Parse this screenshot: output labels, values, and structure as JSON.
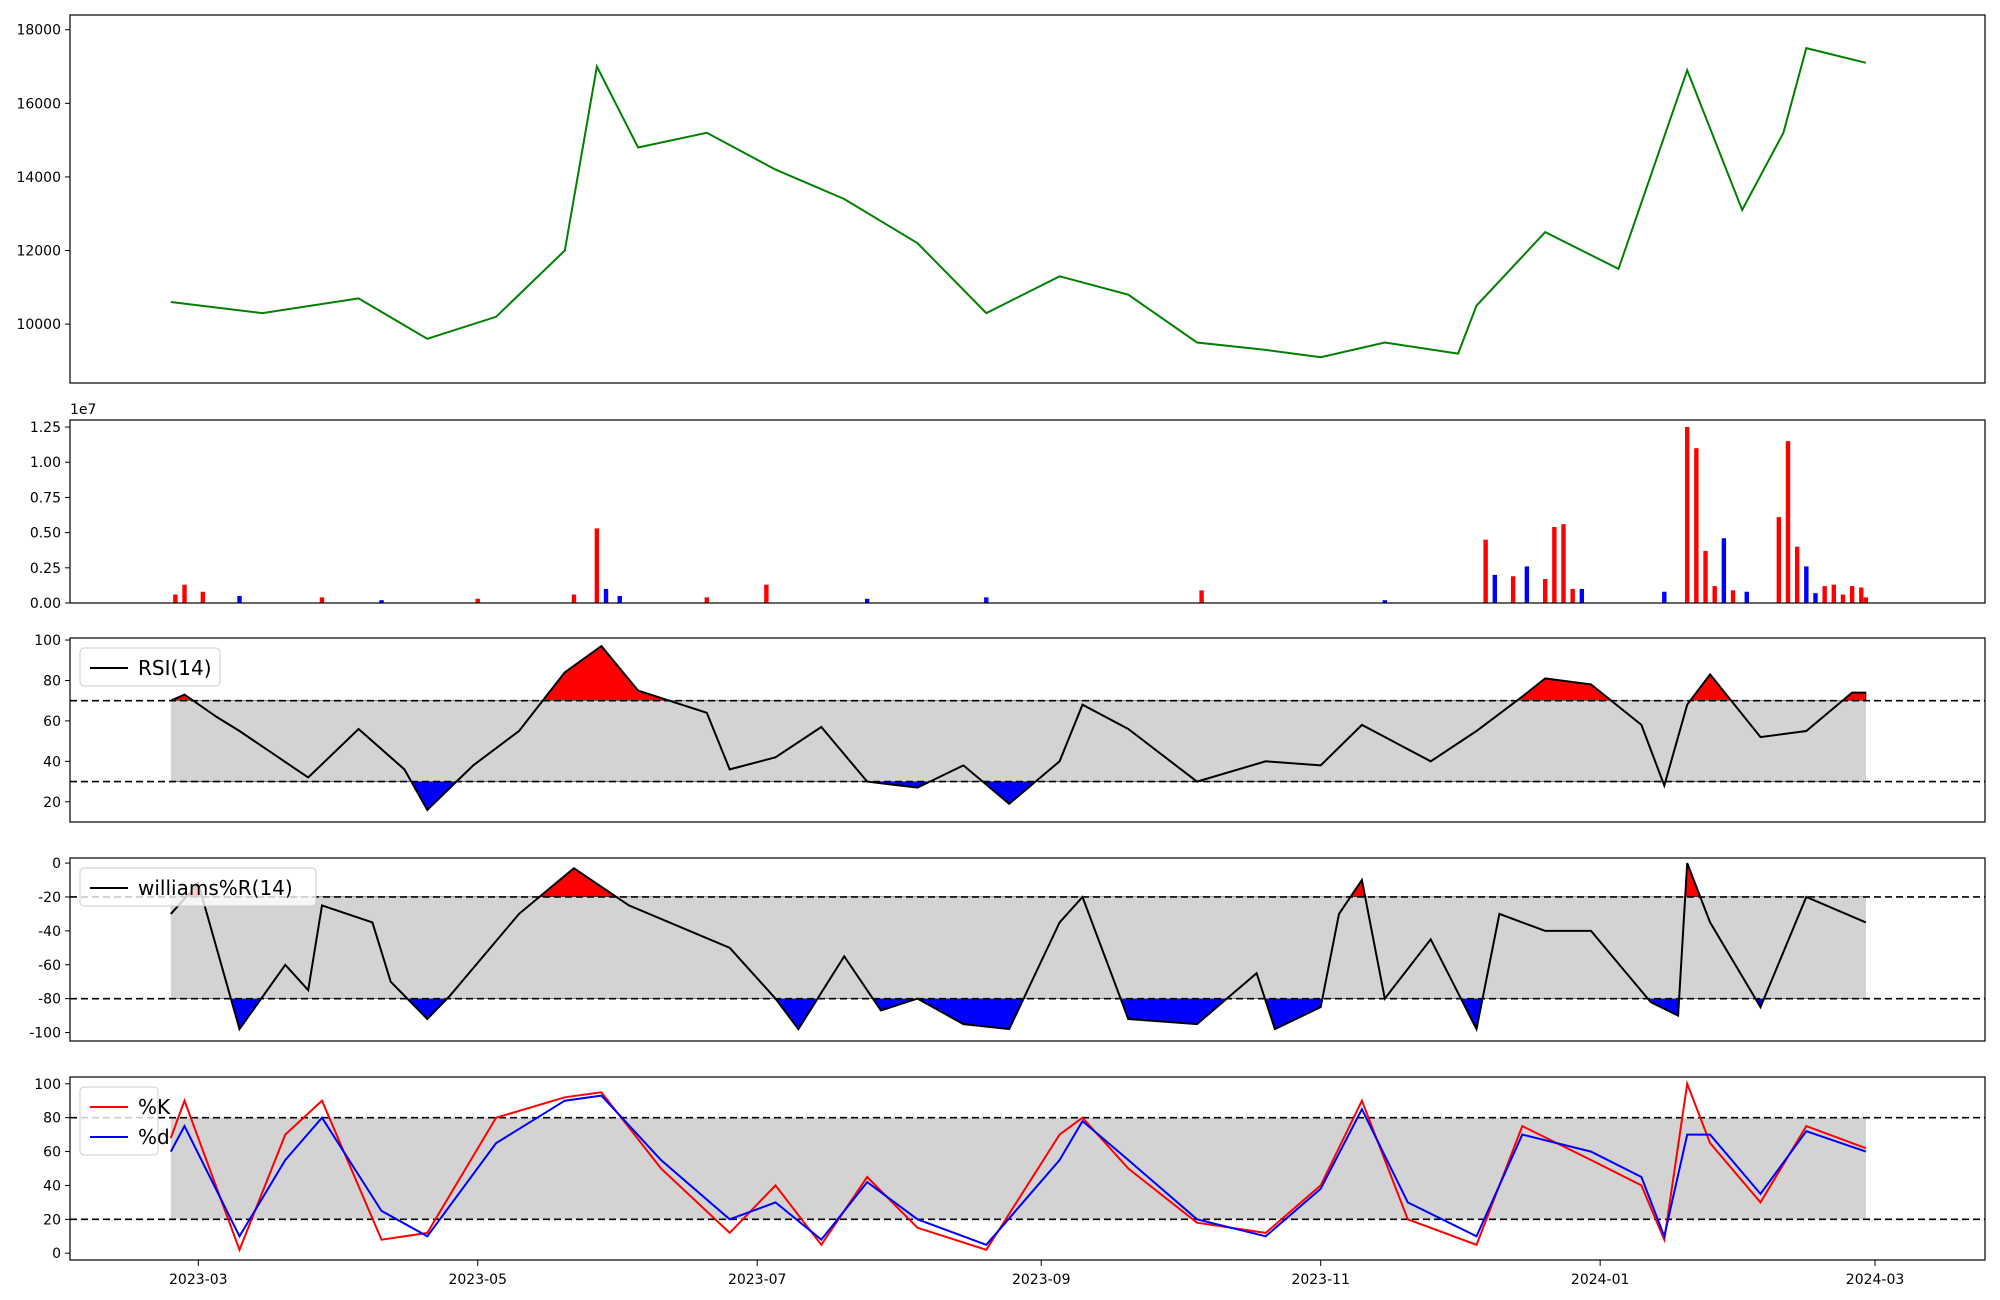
{
  "chart_data": [
    {
      "type": "line",
      "name": "price",
      "x_dates": [
        "2023-02-23",
        "2023-03-15",
        "2023-04-05",
        "2023-04-20",
        "2023-05-05",
        "2023-05-20",
        "2023-05-27",
        "2023-06-05",
        "2023-06-20",
        "2023-07-05",
        "2023-07-20",
        "2023-08-05",
        "2023-08-20",
        "2023-09-05",
        "2023-09-20",
        "2023-10-05",
        "2023-10-20",
        "2023-11-01",
        "2023-11-15",
        "2023-12-01",
        "2023-12-05",
        "2023-12-20",
        "2024-01-05",
        "2024-01-20",
        "2024-02-01",
        "2024-02-10",
        "2024-02-15",
        "2024-02-28"
      ],
      "values": [
        10600,
        10300,
        10700,
        9600,
        10200,
        12000,
        17000,
        14800,
        15200,
        14200,
        13400,
        12200,
        10300,
        11300,
        10800,
        9500,
        9300,
        9100,
        9500,
        9200,
        10500,
        12500,
        11500,
        16900,
        13100,
        15200,
        17500,
        17100
      ],
      "ylim": [
        8400,
        18400
      ],
      "yticks": [
        "10000",
        "12000",
        "14000",
        "16000",
        "18000"
      ],
      "color": "#008000"
    },
    {
      "type": "bar",
      "name": "volume",
      "scale_label": "1e7",
      "ylim": [
        0,
        1.3
      ],
      "yticks": [
        "0.00",
        "0.25",
        "0.50",
        "0.75",
        "1.00",
        "1.25"
      ],
      "colors": {
        "up": "#ff0000",
        "down": "#0000ff"
      },
      "bars": [
        {
          "x": "2023-02-24",
          "v": 0.06,
          "c": "up"
        },
        {
          "x": "2023-02-26",
          "v": 0.13,
          "c": "up"
        },
        {
          "x": "2023-03-02",
          "v": 0.08,
          "c": "up"
        },
        {
          "x": "2023-03-10",
          "v": 0.05,
          "c": "down"
        },
        {
          "x": "2023-03-28",
          "v": 0.04,
          "c": "up"
        },
        {
          "x": "2023-04-10",
          "v": 0.02,
          "c": "down"
        },
        {
          "x": "2023-05-01",
          "v": 0.03,
          "c": "up"
        },
        {
          "x": "2023-05-22",
          "v": 0.06,
          "c": "up"
        },
        {
          "x": "2023-05-27",
          "v": 0.53,
          "c": "up"
        },
        {
          "x": "2023-05-29",
          "v": 0.1,
          "c": "down"
        },
        {
          "x": "2023-06-01",
          "v": 0.05,
          "c": "down"
        },
        {
          "x": "2023-06-20",
          "v": 0.04,
          "c": "up"
        },
        {
          "x": "2023-07-03",
          "v": 0.13,
          "c": "up"
        },
        {
          "x": "2023-07-25",
          "v": 0.03,
          "c": "down"
        },
        {
          "x": "2023-08-20",
          "v": 0.04,
          "c": "down"
        },
        {
          "x": "2023-10-06",
          "v": 0.09,
          "c": "up"
        },
        {
          "x": "2023-11-15",
          "v": 0.02,
          "c": "down"
        },
        {
          "x": "2023-12-07",
          "v": 0.45,
          "c": "up"
        },
        {
          "x": "2023-12-09",
          "v": 0.2,
          "c": "down"
        },
        {
          "x": "2023-12-13",
          "v": 0.19,
          "c": "up"
        },
        {
          "x": "2023-12-16",
          "v": 0.26,
          "c": "down"
        },
        {
          "x": "2023-12-20",
          "v": 0.17,
          "c": "up"
        },
        {
          "x": "2023-12-22",
          "v": 0.54,
          "c": "up"
        },
        {
          "x": "2023-12-24",
          "v": 0.56,
          "c": "up"
        },
        {
          "x": "2023-12-26",
          "v": 0.1,
          "c": "up"
        },
        {
          "x": "2023-12-28",
          "v": 0.1,
          "c": "down"
        },
        {
          "x": "2024-01-15",
          "v": 0.08,
          "c": "down"
        },
        {
          "x": "2024-01-20",
          "v": 1.25,
          "c": "up"
        },
        {
          "x": "2024-01-22",
          "v": 1.1,
          "c": "up"
        },
        {
          "x": "2024-01-24",
          "v": 0.37,
          "c": "up"
        },
        {
          "x": "2024-01-26",
          "v": 0.12,
          "c": "up"
        },
        {
          "x": "2024-01-28",
          "v": 0.46,
          "c": "down"
        },
        {
          "x": "2024-01-30",
          "v": 0.09,
          "c": "up"
        },
        {
          "x": "2024-02-02",
          "v": 0.08,
          "c": "down"
        },
        {
          "x": "2024-02-09",
          "v": 0.61,
          "c": "up"
        },
        {
          "x": "2024-02-11",
          "v": 1.15,
          "c": "up"
        },
        {
          "x": "2024-02-13",
          "v": 0.4,
          "c": "up"
        },
        {
          "x": "2024-02-15",
          "v": 0.26,
          "c": "down"
        },
        {
          "x": "2024-02-17",
          "v": 0.07,
          "c": "down"
        },
        {
          "x": "2024-02-19",
          "v": 0.12,
          "c": "up"
        },
        {
          "x": "2024-02-21",
          "v": 0.13,
          "c": "up"
        },
        {
          "x": "2024-02-23",
          "v": 0.06,
          "c": "up"
        },
        {
          "x": "2024-02-25",
          "v": 0.12,
          "c": "up"
        },
        {
          "x": "2024-02-27",
          "v": 0.11,
          "c": "up"
        },
        {
          "x": "2024-02-28",
          "v": 0.04,
          "c": "up"
        }
      ]
    },
    {
      "type": "line",
      "name": "rsi",
      "legend": [
        "RSI(14)"
      ],
      "thresholds": [
        70,
        30
      ],
      "ylim": [
        10,
        101
      ],
      "yticks": [
        "20",
        "40",
        "60",
        "80",
        "100"
      ],
      "x_dates": [
        "2023-02-23",
        "2023-02-26",
        "2023-03-05",
        "2023-03-10",
        "2023-03-25",
        "2023-04-05",
        "2023-04-15",
        "2023-04-20",
        "2023-04-30",
        "2023-05-10",
        "2023-05-20",
        "2023-05-28",
        "2023-06-05",
        "2023-06-20",
        "2023-06-25",
        "2023-07-05",
        "2023-07-15",
        "2023-07-25",
        "2023-08-05",
        "2023-08-15",
        "2023-08-25",
        "2023-09-05",
        "2023-09-10",
        "2023-09-20",
        "2023-10-05",
        "2023-10-20",
        "2023-11-01",
        "2023-11-10",
        "2023-11-25",
        "2023-12-05",
        "2023-12-15",
        "2023-12-20",
        "2023-12-30",
        "2024-01-10",
        "2024-01-15",
        "2024-01-20",
        "2024-01-25",
        "2024-02-05",
        "2024-02-15",
        "2024-02-25",
        "2024-02-28"
      ],
      "values": [
        70,
        73,
        62,
        55,
        32,
        56,
        36,
        16,
        38,
        55,
        84,
        97,
        75,
        64,
        36,
        42,
        57,
        30,
        27,
        38,
        19,
        40,
        68,
        56,
        30,
        40,
        38,
        58,
        40,
        55,
        72,
        81,
        78,
        58,
        28,
        68,
        83,
        52,
        55,
        74,
        74
      ],
      "colors": {
        "line": "#000000",
        "band": "#d3d3d3",
        "over": "#ff0000",
        "under": "#0000ff"
      }
    },
    {
      "type": "line",
      "name": "williams",
      "legend": [
        "williams%R(14)"
      ],
      "thresholds": [
        -20,
        -80
      ],
      "ylim": [
        -105,
        3
      ],
      "yticks": [
        "-100",
        "-80",
        "-60",
        "-40",
        "-20",
        "0"
      ],
      "x_dates": [
        "2023-02-23",
        "2023-03-01",
        "2023-03-10",
        "2023-03-20",
        "2023-03-25",
        "2023-03-28",
        "2023-04-08",
        "2023-04-12",
        "2023-04-20",
        "2023-04-25",
        "2023-05-10",
        "2023-05-22",
        "2023-06-03",
        "2023-06-25",
        "2023-07-05",
        "2023-07-10",
        "2023-07-20",
        "2023-07-28",
        "2023-08-05",
        "2023-08-15",
        "2023-08-25",
        "2023-09-05",
        "2023-09-10",
        "2023-09-20",
        "2023-10-05",
        "2023-10-18",
        "2023-10-22",
        "2023-11-01",
        "2023-11-05",
        "2023-11-10",
        "2023-11-15",
        "2023-11-25",
        "2023-12-05",
        "2023-12-10",
        "2023-12-20",
        "2023-12-30",
        "2024-01-12",
        "2024-01-18",
        "2024-01-20",
        "2024-01-25",
        "2024-02-05",
        "2024-02-15",
        "2024-02-28"
      ],
      "values": [
        -30,
        -12,
        -98,
        -60,
        -75,
        -25,
        -35,
        -70,
        -92,
        -78,
        -30,
        -3,
        -25,
        -50,
        -80,
        -98,
        -55,
        -87,
        -80,
        -95,
        -98,
        -35,
        -20,
        -92,
        -95,
        -65,
        -98,
        -85,
        -30,
        -10,
        -80,
        -45,
        -98,
        -30,
        -40,
        -40,
        -82,
        -90,
        0,
        -35,
        -85,
        -20,
        -35
      ],
      "colors": {
        "line": "#000000",
        "band": "#d3d3d3",
        "over": "#ff0000",
        "under": "#0000ff"
      }
    },
    {
      "type": "line",
      "name": "stochastic",
      "legend": [
        "%K",
        "%d"
      ],
      "thresholds": [
        80,
        20
      ],
      "ylim": [
        -4,
        104
      ],
      "yticks": [
        "0",
        "20",
        "40",
        "60",
        "80",
        "100"
      ],
      "x_dates": [
        "2023-02-23",
        "2023-02-26",
        "2023-03-10",
        "2023-03-20",
        "2023-03-28",
        "2023-04-10",
        "2023-04-20",
        "2023-05-05",
        "2023-05-20",
        "2023-05-28",
        "2023-06-10",
        "2023-06-25",
        "2023-07-05",
        "2023-07-15",
        "2023-07-25",
        "2023-08-05",
        "2023-08-20",
        "2023-09-05",
        "2023-09-10",
        "2023-09-20",
        "2023-10-05",
        "2023-10-20",
        "2023-11-01",
        "2023-11-10",
        "2023-11-20",
        "2023-12-05",
        "2023-12-15",
        "2023-12-30",
        "2024-01-10",
        "2024-01-15",
        "2024-01-20",
        "2024-01-25",
        "2024-02-05",
        "2024-02-15",
        "2024-02-28"
      ],
      "series": [
        {
          "name": "%K",
          "color": "#ff0000",
          "values": [
            68,
            90,
            2,
            70,
            90,
            8,
            12,
            80,
            92,
            95,
            50,
            12,
            40,
            5,
            45,
            15,
            2,
            70,
            80,
            50,
            18,
            12,
            40,
            90,
            20,
            5,
            75,
            55,
            40,
            8,
            100,
            65,
            30,
            75,
            62
          ]
        },
        {
          "name": "%d",
          "color": "#0000ff",
          "values": [
            60,
            75,
            10,
            55,
            80,
            25,
            10,
            65,
            90,
            93,
            55,
            20,
            30,
            8,
            42,
            20,
            5,
            55,
            78,
            55,
            20,
            10,
            38,
            85,
            30,
            10,
            70,
            60,
            45,
            10,
            70,
            70,
            35,
            72,
            60
          ]
        }
      ]
    }
  ],
  "x_axis": {
    "tick_labels": [
      "2023-03",
      "2023-05",
      "2023-07",
      "2023-09",
      "2023-11",
      "2024-01",
      "2024-03"
    ],
    "tick_dates": [
      "2023-03-01",
      "2023-05-01",
      "2023-07-01",
      "2023-09-01",
      "2023-11-01",
      "2024-01-01",
      "2024-03-01"
    ],
    "range": [
      "2023-02-01",
      "2024-03-25"
    ]
  }
}
